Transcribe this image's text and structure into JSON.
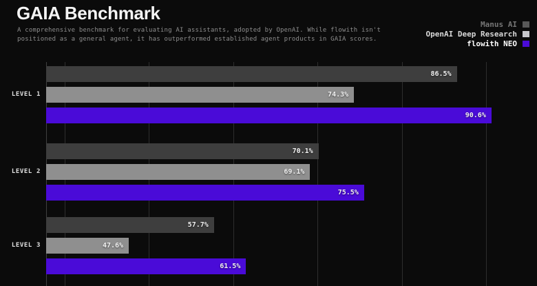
{
  "header": {
    "title": "GAIA Benchmark",
    "subtitle_lines": [
      "A comprehensive benchmark for evaluating AI assistants, adopted by OpenAI. While flowith isn't",
      "positioned as a general agent, it has outperformed established agent products in GAIA scores."
    ]
  },
  "legend": [
    {
      "label": "Manus AI",
      "swatch_color": "#585858",
      "text_color": "#767676"
    },
    {
      "label": "OpenAI Deep Research",
      "swatch_color": "#c7c7cb",
      "text_color": "#d8d8d8"
    },
    {
      "label": "flowith NEO",
      "swatch_color": "#4a0bd8",
      "text_color": "#ffffff"
    }
  ],
  "colors": {
    "background": "#0b0b0b",
    "accent_purple": "#4a0bd8",
    "bar_dark_gray": "#3e3e3e",
    "bar_light_gray": "#8f8f8f",
    "gridline": "#2e2e2e"
  },
  "chart_data": {
    "type": "bar",
    "orientation": "horizontal",
    "title": "GAIA Benchmark",
    "categories": [
      "LEVEL 1",
      "LEVEL 2",
      "LEVEL 3"
    ],
    "series": [
      {
        "name": "Manus AI",
        "color": "#3e3e3e",
        "values": [
          86.5,
          70.1,
          57.7
        ]
      },
      {
        "name": "OpenAI Deep Research",
        "color": "#8f8f8f",
        "values": [
          74.3,
          69.1,
          47.6
        ]
      },
      {
        "name": "flowith NEO",
        "color": "#4a0bd8",
        "values": [
          90.6,
          75.5,
          61.5
        ]
      }
    ],
    "value_labels": [
      [
        "86.5%",
        "70.1%",
        "57.7%"
      ],
      [
        "74.3%",
        "69.1%",
        "47.6%"
      ],
      [
        "90.6%",
        "75.5%",
        "61.5%"
      ]
    ],
    "value_suffix": "%",
    "xlim": [
      37.8,
      96.0
    ],
    "gridline_values": [
      40,
      50,
      60,
      70,
      80,
      90
    ],
    "grid": true,
    "xlabel": "",
    "ylabel": "",
    "legend_position": "top-right"
  }
}
